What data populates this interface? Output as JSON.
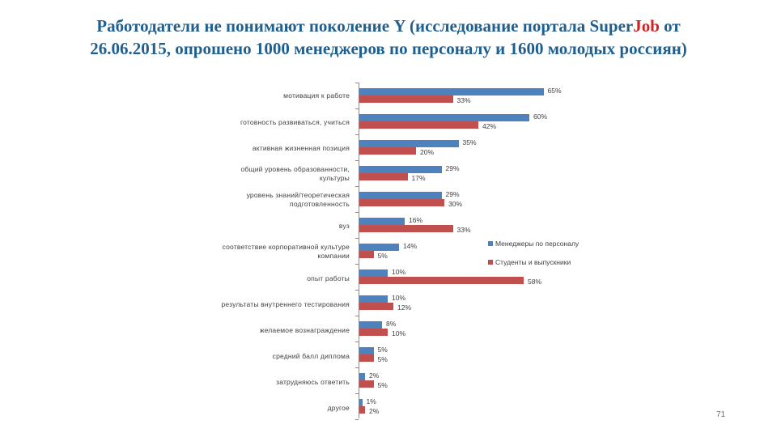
{
  "title": {
    "line1_a": "Работодатели не понимают поколение Y (исследование портала Super",
    "line1_job": "Job",
    "line1_b": " от",
    "line2": "26.06.2015, опрошено 1000 менеджеров по персоналу и 1600 молодых россиян)"
  },
  "page_number": "71",
  "colors": {
    "managers": "#4f81bd",
    "students": "#c0504d",
    "title": "#1f5f8f",
    "title_accent": "#d42020"
  },
  "chart_data": {
    "type": "bar",
    "orientation": "horizontal",
    "title": "Работодатели не понимают поколение Y",
    "xlabel": "",
    "ylabel": "",
    "xlim": [
      0,
      70
    ],
    "grid": false,
    "legend_position": "right",
    "categories": [
      "мотивация к работе",
      "готовность развиваться, учиться",
      "активная жизненная позиция",
      "общий уровень образованности, культуры",
      "уровень знаний/теоретическая подготовленность",
      "вуз",
      "соответствие корпоративной культуре компании",
      "опыт работы",
      "результаты внутреннего тестирования",
      "желаемое вознаграждение",
      "средний балл диплома",
      "затрудняюсь ответить",
      "другое"
    ],
    "series": [
      {
        "name": "Менеджеры по персоналу",
        "values": [
          65,
          60,
          35,
          29,
          29,
          16,
          14,
          10,
          10,
          8,
          5,
          2,
          1
        ]
      },
      {
        "name": "Студенты и выпускники",
        "values": [
          33,
          42,
          20,
          17,
          30,
          33,
          5,
          58,
          12,
          10,
          5,
          5,
          2
        ]
      }
    ],
    "value_labels": [
      [
        "65%",
        "33%"
      ],
      [
        "60%",
        "42%"
      ],
      [
        "35%",
        "20%"
      ],
      [
        "29%",
        "17%"
      ],
      [
        "29%",
        "30%"
      ],
      [
        "16%",
        "33%"
      ],
      [
        "14%",
        "5%"
      ],
      [
        "10%",
        "58%"
      ],
      [
        "10%",
        "12%"
      ],
      [
        "8%",
        "10%"
      ],
      [
        "5%",
        "5%"
      ],
      [
        "2%",
        "5%"
      ],
      [
        "1%",
        "2%"
      ]
    ]
  },
  "labels": {
    "c0": "мотивация к работе",
    "c1": "готовность развиваться, учиться",
    "c2": "активная жизненная позиция",
    "c3a": "общий уровень образованности,",
    "c3b": "культуры",
    "c4a": "уровень знаний/теоретическая",
    "c4b": "подготовленность",
    "c5": "вуз",
    "c6a": "соответствие корпоративной культуре",
    "c6b": "компании",
    "c7": "опыт работы",
    "c8": "результаты внутреннего тестирования",
    "c9": "желаемое вознаграждение",
    "c10": "средний балл диплома",
    "c11": "затрудняюсь ответить",
    "c12": "другое"
  },
  "legend": {
    "managers": "Менеджеры по персоналу",
    "students": "Студенты и выпускники"
  }
}
